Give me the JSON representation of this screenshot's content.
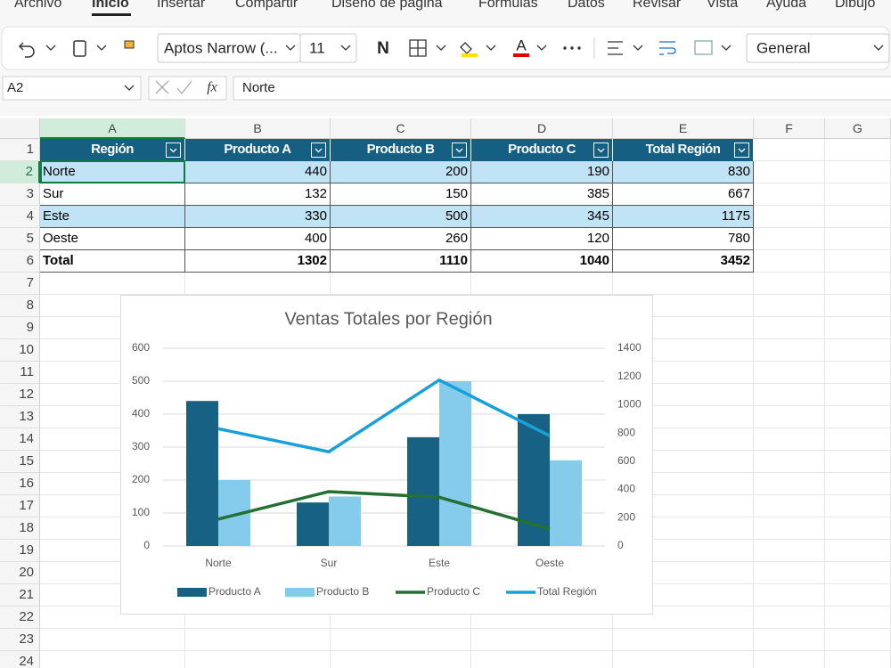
{
  "ribbon": {
    "tabs": [
      "Archivo",
      "Inicio",
      "Insertar",
      "Compartir",
      "Diseño de página",
      "Fórmulas",
      "Datos",
      "Revisar",
      "Vista",
      "Ayuda",
      "Dibujo"
    ],
    "font": "Aptos Narrow (...",
    "font_size": "11",
    "bold": "N",
    "font_color": "A",
    "number_format": "General"
  },
  "formula_bar": {
    "cell": "A2",
    "function_icon": "fx",
    "content": "Norte"
  },
  "sheet": {
    "columns": [
      "A",
      "B",
      "C",
      "D",
      "E",
      "F",
      "G"
    ],
    "rows": [
      1,
      2,
      3,
      4,
      5,
      6,
      7,
      8,
      9,
      10,
      11,
      12,
      13,
      14,
      15,
      16,
      17,
      18,
      19,
      20,
      21,
      22,
      23,
      24
    ],
    "table": {
      "header": [
        "Región",
        "Producto A",
        "Producto B",
        "Producto C",
        "Total Región"
      ],
      "rows": [
        [
          "Norte",
          440,
          200,
          190,
          830
        ],
        [
          "Sur",
          132,
          150,
          385,
          667
        ],
        [
          "Este",
          330,
          500,
          345,
          1175
        ],
        [
          "Oeste",
          400,
          260,
          120,
          780
        ],
        [
          "Total",
          1302,
          1110,
          1040,
          3452
        ]
      ]
    }
  },
  "chart_data": {
    "type": "bar",
    "title": "Ventas Totales por Región",
    "categories": [
      "Norte",
      "Sur",
      "Este",
      "Oeste"
    ],
    "series": [
      {
        "name": "Producto A",
        "color": "#176185",
        "values": [
          440,
          132,
          330,
          400
        ]
      },
      {
        "name": "Producto B",
        "color": "#85cbeb",
        "values": [
          200,
          150,
          500,
          260
        ]
      },
      {
        "name": "Producto C",
        "color": "#237032",
        "type": "line",
        "axis": "y2",
        "values": [
          190,
          385,
          345,
          120
        ]
      },
      {
        "name": "Total Región",
        "color": "#1aa0d8",
        "type": "line",
        "axis": "y2",
        "values": [
          830,
          667,
          1175,
          780
        ]
      }
    ],
    "ylim": [
      0,
      600
    ],
    "yticks": [
      0,
      100,
      200,
      300,
      400,
      500,
      600
    ],
    "y2lim": [
      0,
      1400
    ],
    "y2ticks": [
      0,
      200,
      400,
      600,
      800,
      1000,
      1200,
      1400
    ],
    "grid": true,
    "legend": "bottom"
  }
}
